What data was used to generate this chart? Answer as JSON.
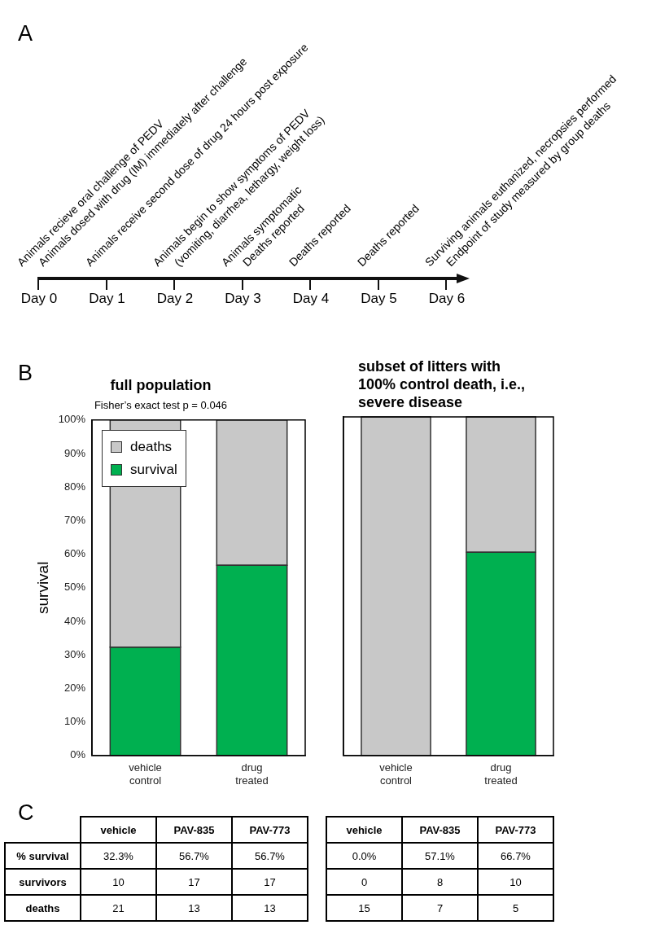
{
  "chart_data": [
    {
      "type": "other",
      "categories": [
        "Day 0",
        "Day 1",
        "Day 2",
        "Day 3",
        "Day 4",
        "Day 5",
        "Day 6"
      ],
      "annotations": [
        "A",
        {
          "text": "Animals recieve oral challenge of PEDV",
          "x": "Day 0"
        },
        {
          "text": "Animals dosed with drug (IM) immediately after challenge",
          "x": "Day 0"
        },
        {
          "text": "Animals receive second dose of drug 24 hours post exposure",
          "x": "Day 1"
        },
        {
          "text": "Animals begin to show symptoms of PEDV",
          "x": "Day 2"
        },
        {
          "text": "(vomiting, diarrhea, lethargy, weight loss)",
          "x": "Day 2"
        },
        {
          "text": "Animals symptomatic",
          "x": "Day 3"
        },
        {
          "text": "Deaths reported",
          "x": "Day 3"
        },
        {
          "text": "Deaths reported",
          "x": "Day 4"
        },
        {
          "text": "Deaths reported",
          "x": "Day 5"
        },
        {
          "text": "Surviving animals euthanized, necropsies performed",
          "x": "Day 6"
        },
        {
          "text": "Endpoint of study measured by group deaths",
          "x": "Day 6"
        }
      ]
    },
    {
      "type": "bar",
      "title": "full population",
      "subtitle": "Fisher’s exact test p = 0.046",
      "ylabel": "survival",
      "annotations": [
        "B"
      ],
      "categories": [
        "vehicle control",
        "drug treated"
      ],
      "stacked": true,
      "legend": "top left",
      "series": [
        {
          "name": "survival",
          "color": "#00b050",
          "values": [
            32.3,
            56.7
          ]
        },
        {
          "name": "deaths",
          "color": "#c8c8c8",
          "values": [
            67.7,
            43.3
          ]
        }
      ],
      "ylim": [
        0,
        100
      ],
      "yticks": [
        {
          "value": 0,
          "label": "0%"
        },
        {
          "value": 10,
          "label": "10%"
        },
        {
          "value": 20,
          "label": "20%"
        },
        {
          "value": 30,
          "label": "30%"
        },
        {
          "value": 40,
          "label": "40%"
        },
        {
          "value": 50,
          "label": "50%"
        },
        {
          "value": 60,
          "label": "60%"
        },
        {
          "value": 70,
          "label": "70%"
        },
        {
          "value": 80,
          "label": "80%"
        },
        {
          "value": 90,
          "label": "90%"
        },
        {
          "value": 100,
          "label": "100%"
        }
      ]
    },
    {
      "type": "bar",
      "title": "subset of litters with 100% control death, i.e., severe disease",
      "categories": [
        "vehicle control",
        "drug treated"
      ],
      "stacked": true,
      "tick_labels": "x",
      "series": [
        {
          "color": "#00b050",
          "values": [
            0,
            60
          ]
        },
        {
          "color": "#c8c8c8",
          "values": [
            100,
            40
          ]
        }
      ],
      "ylim": [
        0,
        100
      ],
      "yticks": [
        {
          "value": 0,
          "label": "0%"
        },
        {
          "value": 10,
          "label": "10%"
        },
        {
          "value": 20,
          "label": "20%"
        },
        {
          "value": 30,
          "label": "30%"
        },
        {
          "value": 40,
          "label": "40%"
        },
        {
          "value": 50,
          "label": "50%"
        },
        {
          "value": 60,
          "label": "60%"
        },
        {
          "value": 70,
          "label": "70%"
        },
        {
          "value": 80,
          "label": "80%"
        },
        {
          "value": 90,
          "label": "90%"
        },
        {
          "value": 100,
          "label": "100%"
        }
      ]
    },
    {
      "type": "other",
      "annotations": [
        "C"
      ],
      "categories": [
        "vehicle",
        "PAV-835",
        "PAV-773"
      ],
      "y_categories": [
        "% survival",
        "survivors",
        "deaths"
      ],
      "cell_labels": [
        [
          "32.3%",
          "56.7%",
          "56.7%"
        ],
        [
          "10",
          "17",
          "17"
        ],
        [
          "21",
          "13",
          "13"
        ]
      ]
    },
    {
      "type": "other",
      "categories": [
        "vehicle",
        "PAV-835",
        "PAV-773"
      ],
      "cell_labels": [
        [
          "0.0%",
          "57.1%",
          "66.7%"
        ],
        [
          "0",
          "8",
          "10"
        ],
        [
          "15",
          "7",
          "5"
        ]
      ]
    }
  ]
}
